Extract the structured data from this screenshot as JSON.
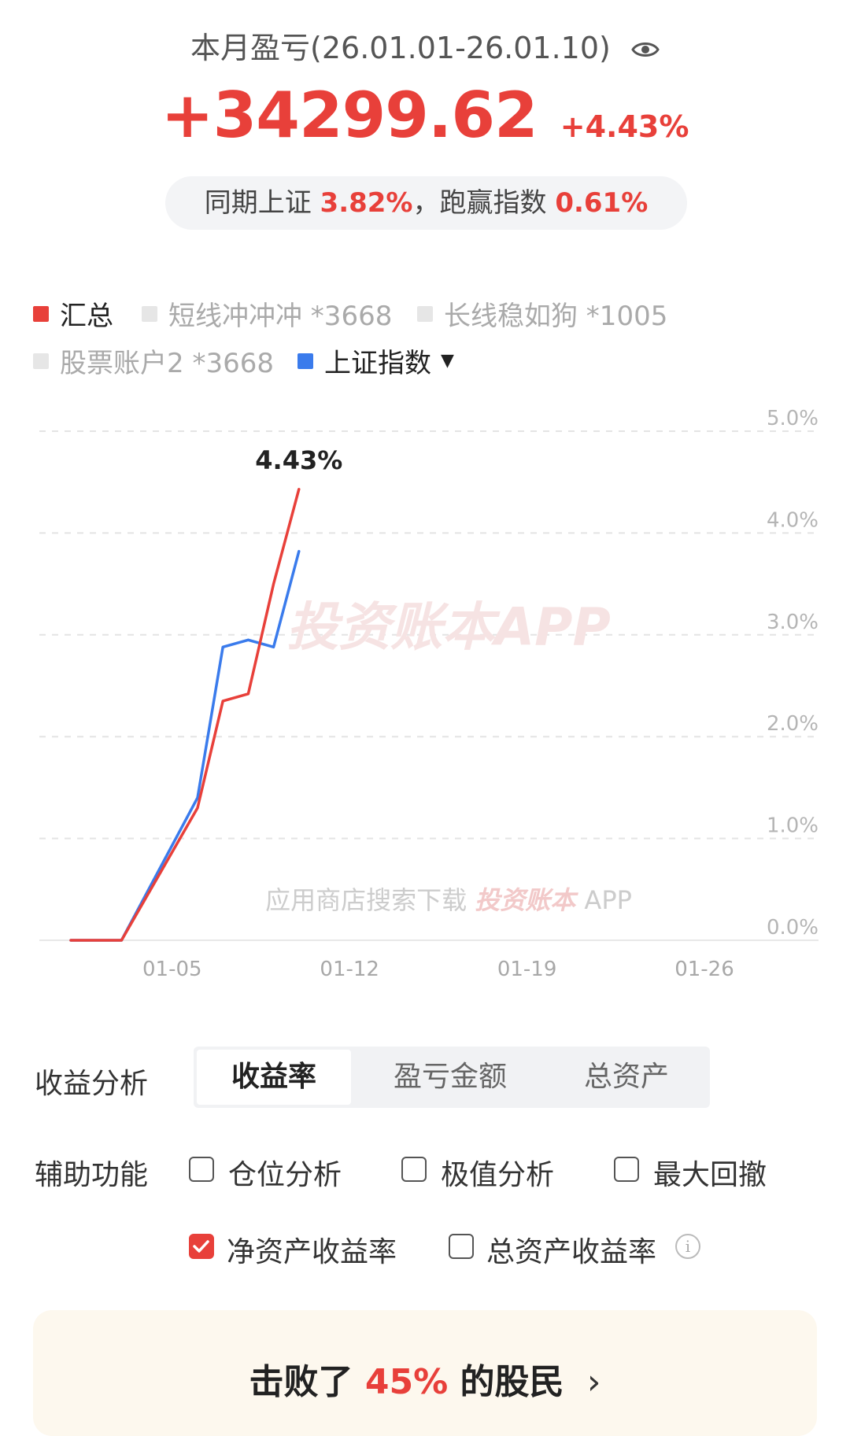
{
  "header": {
    "title": "本月盈亏(26.01.01-26.01.10)",
    "profit_amount": "+34299.62",
    "profit_percent": "+4.43%",
    "compare_prefix": "同期上证 ",
    "compare_index_pct": "3.82%",
    "compare_mid": "，跑赢指数 ",
    "compare_beat_pct": "0.61%"
  },
  "legend": [
    {
      "label": "汇总",
      "color": "#e8403a",
      "active": true
    },
    {
      "label": "短线冲冲冲 *3668",
      "color": "#e6e6e6",
      "active": false
    },
    {
      "label": "长线稳如狗 *1005",
      "color": "#e6e6e6",
      "active": false
    },
    {
      "label": "股票账户2 *3668",
      "color": "#e6e6e6",
      "active": false
    },
    {
      "label": "上证指数",
      "color": "#3a7bec",
      "active": true
    }
  ],
  "chart_data": {
    "type": "line",
    "x_tick_labels": [
      "01-05",
      "01-12",
      "01-19",
      "01-26"
    ],
    "y_tick_labels": [
      "5.0%",
      "4.0%",
      "3.0%",
      "2.0%",
      "1.0%",
      "0.0%"
    ],
    "ylim": [
      0,
      5.0
    ],
    "x_range_days": [
      1,
      31
    ],
    "grid": true,
    "end_label": "4.43%",
    "series": [
      {
        "name": "汇总",
        "color": "#e8403a",
        "x": [
          1,
          3,
          6,
          7,
          8,
          9,
          10
        ],
        "y": [
          0,
          0,
          1.3,
          2.35,
          2.42,
          3.5,
          4.43
        ]
      },
      {
        "name": "上证指数",
        "color": "#3a7bec",
        "x": [
          1,
          3,
          6,
          7,
          8,
          9,
          10
        ],
        "y": [
          0,
          0,
          1.4,
          2.88,
          2.95,
          2.88,
          3.82
        ]
      }
    ],
    "watermark": "投资账本APP",
    "watermark_bottom": "应用商店搜索下载",
    "watermark_bottom_brand": "投资账本",
    "watermark_bottom_suffix": "APP"
  },
  "analysis": {
    "label": "收益分析",
    "tabs": [
      "收益率",
      "盈亏金额",
      "总资产"
    ],
    "active_tab": "收益率"
  },
  "aux": {
    "label": "辅助功能",
    "options": [
      {
        "label": "仓位分析",
        "checked": false
      },
      {
        "label": "极值分析",
        "checked": false
      },
      {
        "label": "最大回撤",
        "checked": false
      },
      {
        "label": "净资产收益率",
        "checked": true
      },
      {
        "label": "总资产收益率",
        "checked": false
      }
    ],
    "info_symbol": "i"
  },
  "rank": {
    "prefix": "击败了 ",
    "percent": "45%",
    "suffix": " 的股民",
    "arrow": "›"
  }
}
